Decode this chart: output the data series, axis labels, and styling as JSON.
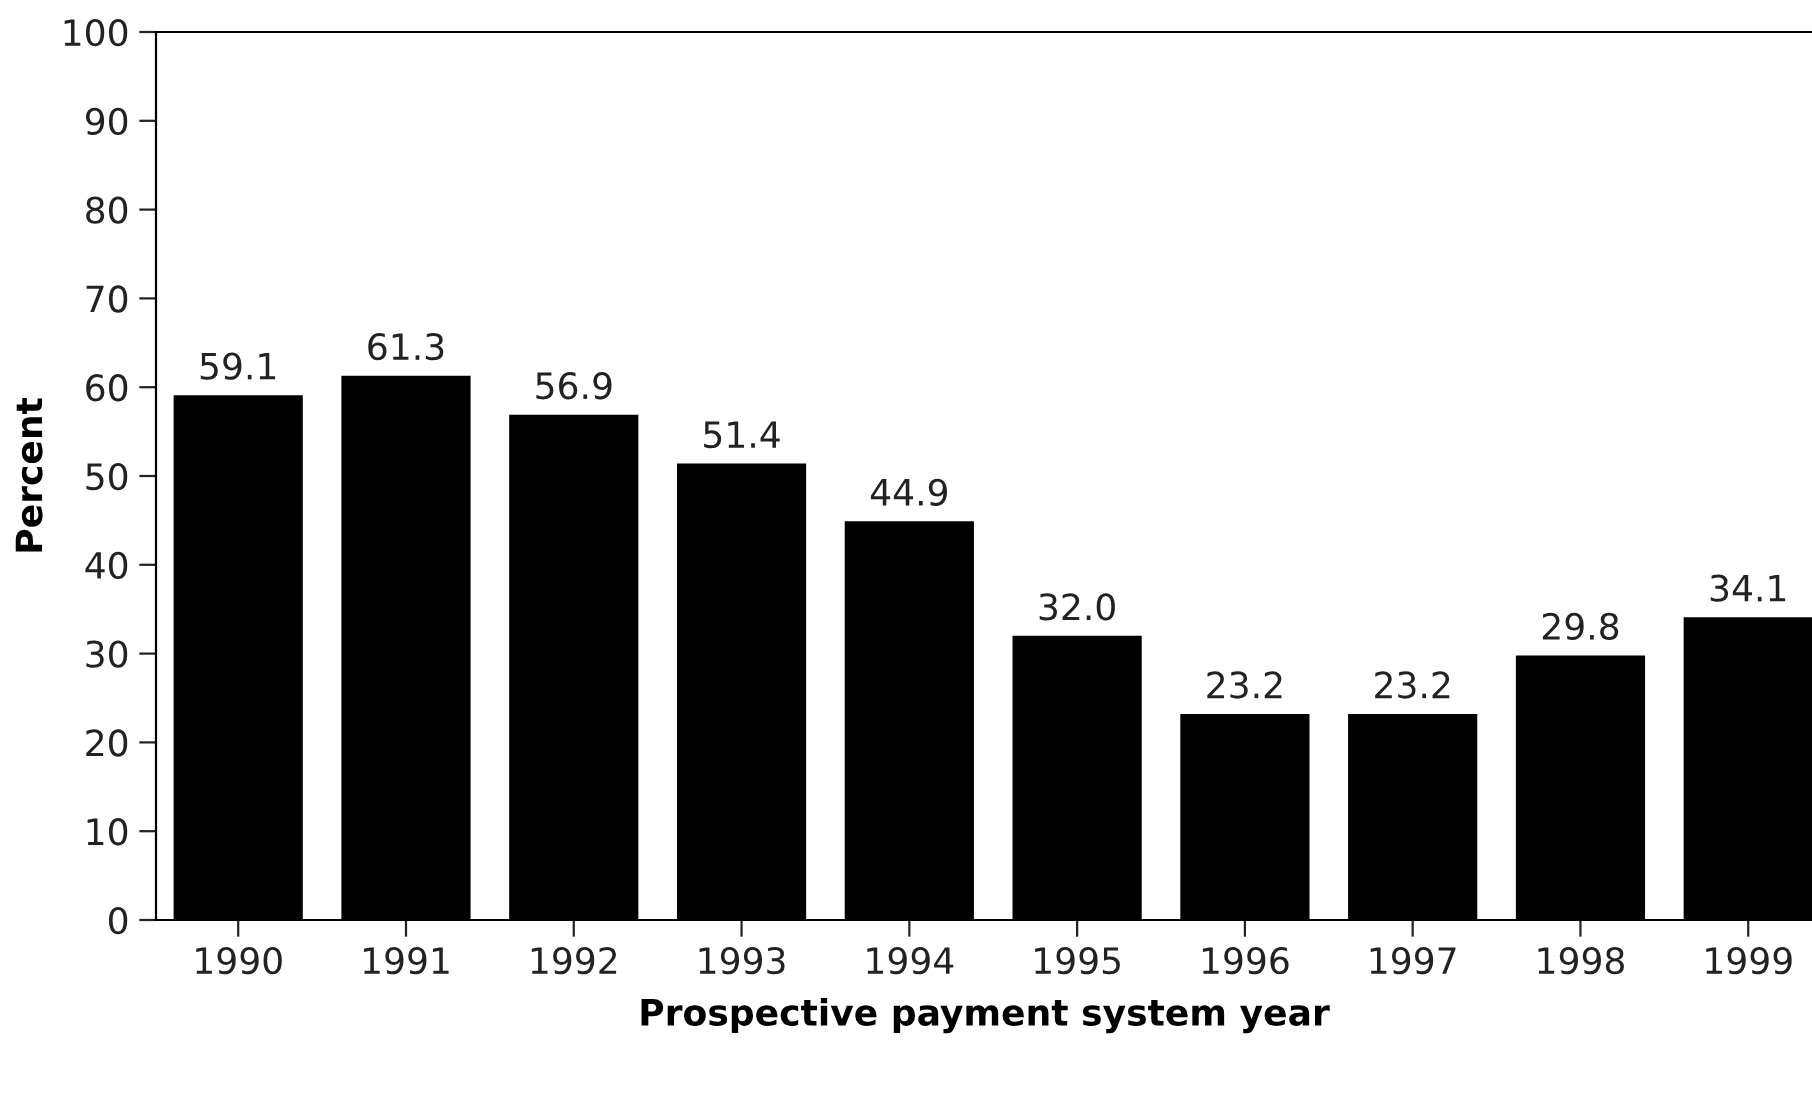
{
  "chart_data": {
    "type": "bar",
    "xlabel": "Prospective payment system year",
    "ylabel": "Percent",
    "categories": [
      "1990",
      "1991",
      "1992",
      "1993",
      "1994",
      "1995",
      "1996",
      "1997",
      "1998",
      "1999"
    ],
    "values": [
      59.1,
      61.3,
      56.9,
      51.4,
      44.9,
      32.0,
      23.2,
      23.2,
      29.8,
      34.1
    ],
    "value_labels": [
      "59.1",
      "61.3",
      "56.9",
      "51.4",
      "44.9",
      "32.0",
      "23.2",
      "23.2",
      "29.8",
      "34.1"
    ],
    "color": "#000000",
    "ylim": [
      0,
      100
    ],
    "yticks": [
      0,
      10,
      20,
      30,
      40,
      50,
      60,
      70,
      80,
      90,
      100
    ],
    "grid": false,
    "legend": false
  }
}
